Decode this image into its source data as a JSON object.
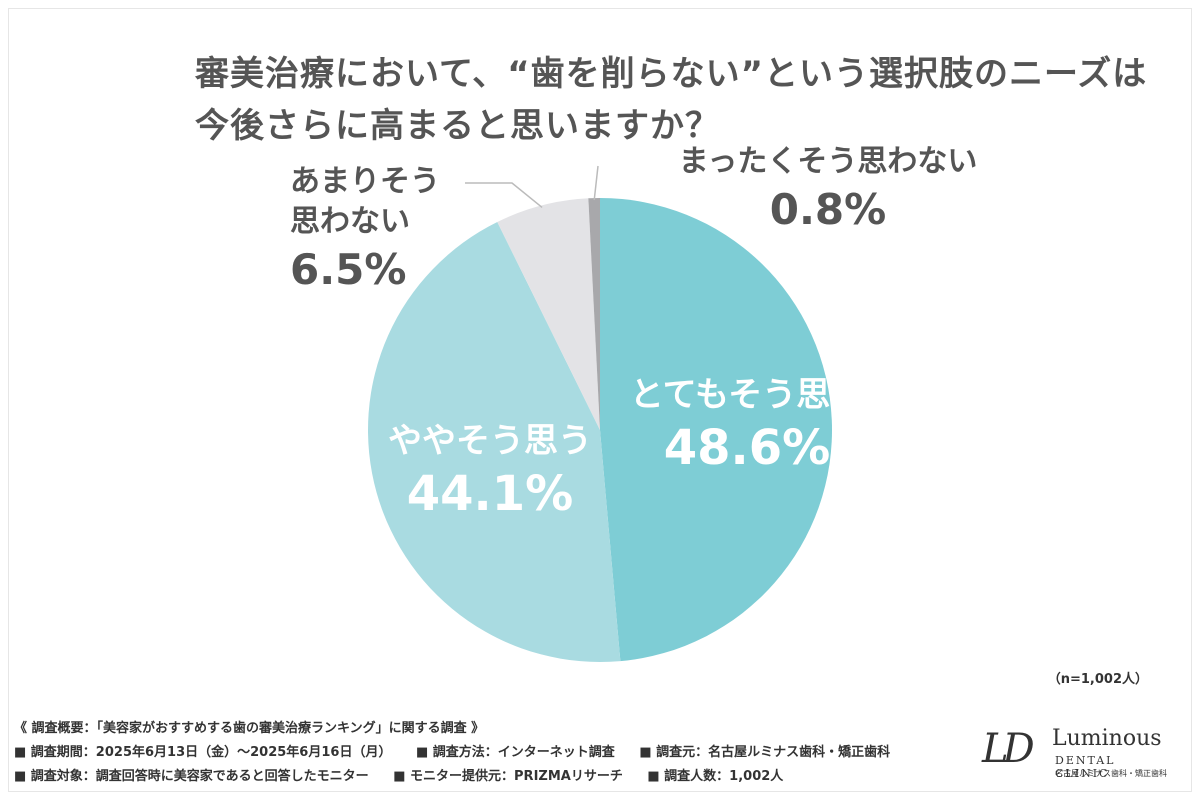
{
  "title": {
    "line1": "審美治療において、“歯を削らない”という選択肢のニーズは",
    "line2": "今後さらに高まると思いますか？"
  },
  "chart_data": {
    "type": "pie",
    "title": "審美治療において、“歯を削らない”という選択肢のニーズは今後さらに高まると思いますか？",
    "slices": [
      {
        "label": "とてもそう思う",
        "value": 48.6,
        "display": "48.6%",
        "color": "#7ecdd5"
      },
      {
        "label": "ややそう思う",
        "value": 44.1,
        "display": "44.1%",
        "color": "#a9dbe1"
      },
      {
        "label": "あまりそう思わない",
        "value": 6.5,
        "display": "6.5%",
        "color": "#e3e3e6"
      },
      {
        "label": "まったくそう思わない",
        "value": 0.8,
        "display": "0.8%",
        "color": "#a8a8ab"
      }
    ],
    "start": "12 o'clock",
    "direction": "clockwise"
  },
  "labels": {
    "very": {
      "text": "とてもそう思う",
      "pct": "48.6%"
    },
    "somewhat": {
      "text": "ややそう思う",
      "pct": "44.1%"
    },
    "not_much": {
      "line1": "あまりそう",
      "line2": "思わない",
      "pct": "6.5%"
    },
    "not_at_all": {
      "text": "まったくそう思わない",
      "pct": "0.8%"
    }
  },
  "sample_size": "（n=1,002人）",
  "notes": {
    "header": "《 調査概要：「美容家がおすすめする歯の審美治療ランキング」に関する調査 》",
    "period": "■ 調査期間：2025年6月13日（金）～2025年6月16日（月）",
    "method": "■ 調査方法：インターネット調査",
    "source": "■ 調査元：名古屋ルミナス歯科・矯正歯科",
    "target": "■ 調査対象：調査回答時に美容家であると回答したモニター",
    "provider": "■ モニター提供元：PRIZMAリサーチ",
    "count": "■ 調査人数：1,002人"
  },
  "logo": {
    "mark": "LD",
    "name": "Luminous",
    "sub": "DENTAL CLINIC",
    "sub_jp": "名古屋ルミナス歯科・矯正歯科"
  }
}
